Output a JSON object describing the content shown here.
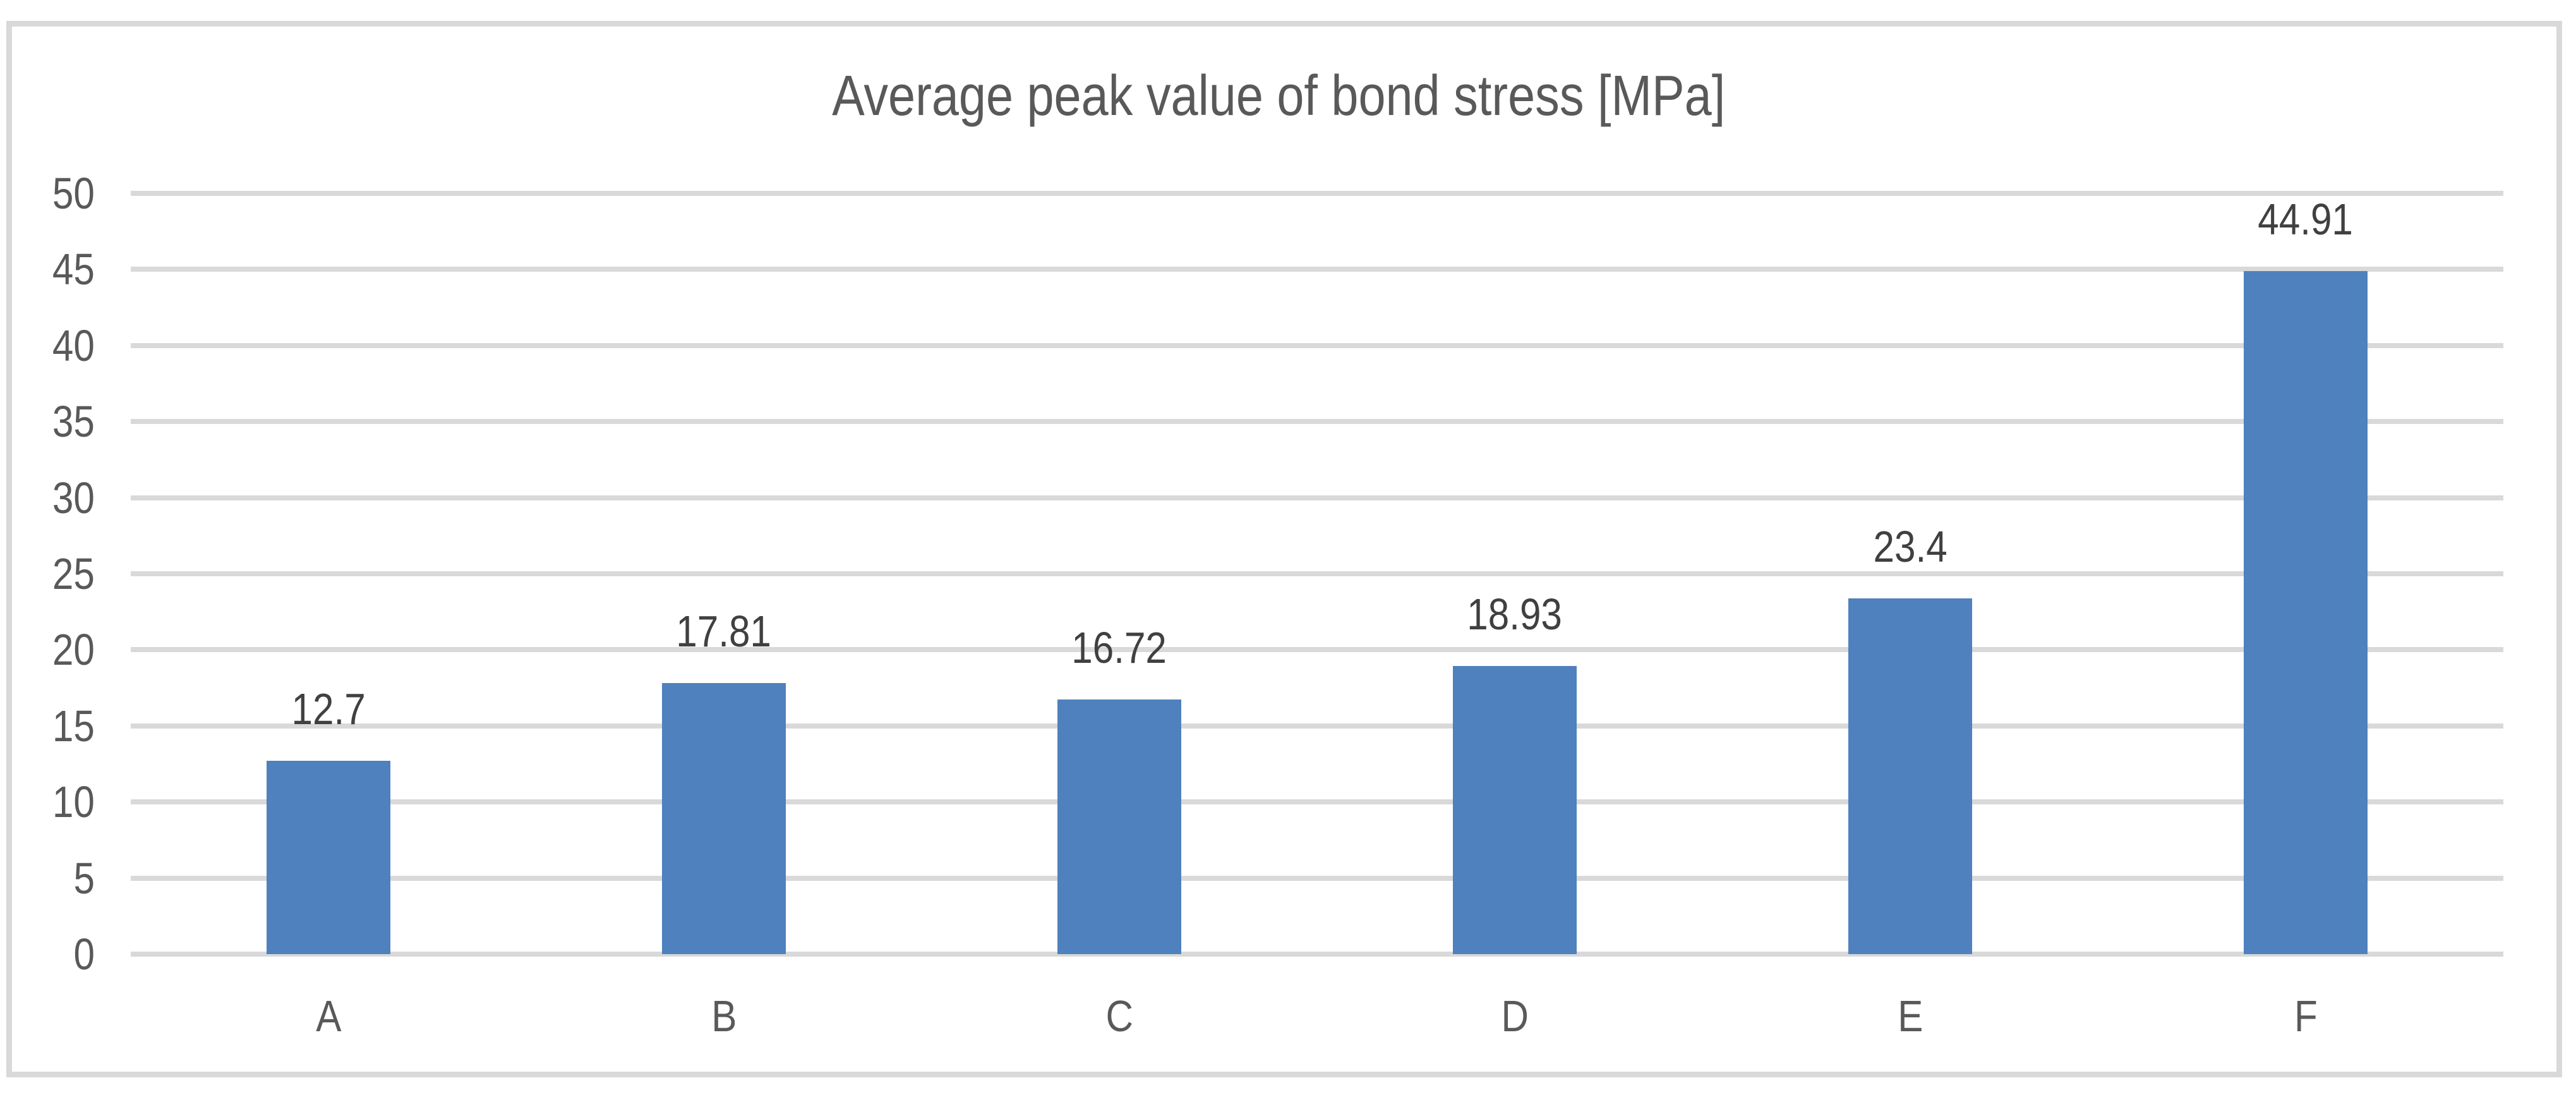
{
  "chart_data": {
    "type": "bar",
    "title": "Average peak value of bond stress [MPa]",
    "categories": [
      "A",
      "B",
      "C",
      "D",
      "E",
      "F"
    ],
    "values": [
      12.7,
      17.81,
      16.72,
      18.93,
      23.4,
      44.91
    ],
    "value_labels": [
      "12.7",
      "17.81",
      "16.72",
      "18.93",
      "23.4",
      "44.91"
    ],
    "series_name": "Average peak value of bond stress",
    "xlabel": "",
    "ylabel": "",
    "ylim": [
      0,
      50
    ],
    "ytick_step": 5,
    "yticks": [
      0,
      5,
      10,
      15,
      20,
      25,
      30,
      35,
      40,
      45,
      50
    ],
    "grid": true,
    "gridline_orientation": "horizontal",
    "legend_position": "none",
    "colors": {
      "bar_fill": "#4E81BD",
      "gridline": "#D9D9D9",
      "chart_border": "#D9D9D9",
      "axis_label_text": "#595959",
      "data_label_text": "#404040",
      "title_text": "#595959",
      "background": "#FFFFFF"
    }
  }
}
